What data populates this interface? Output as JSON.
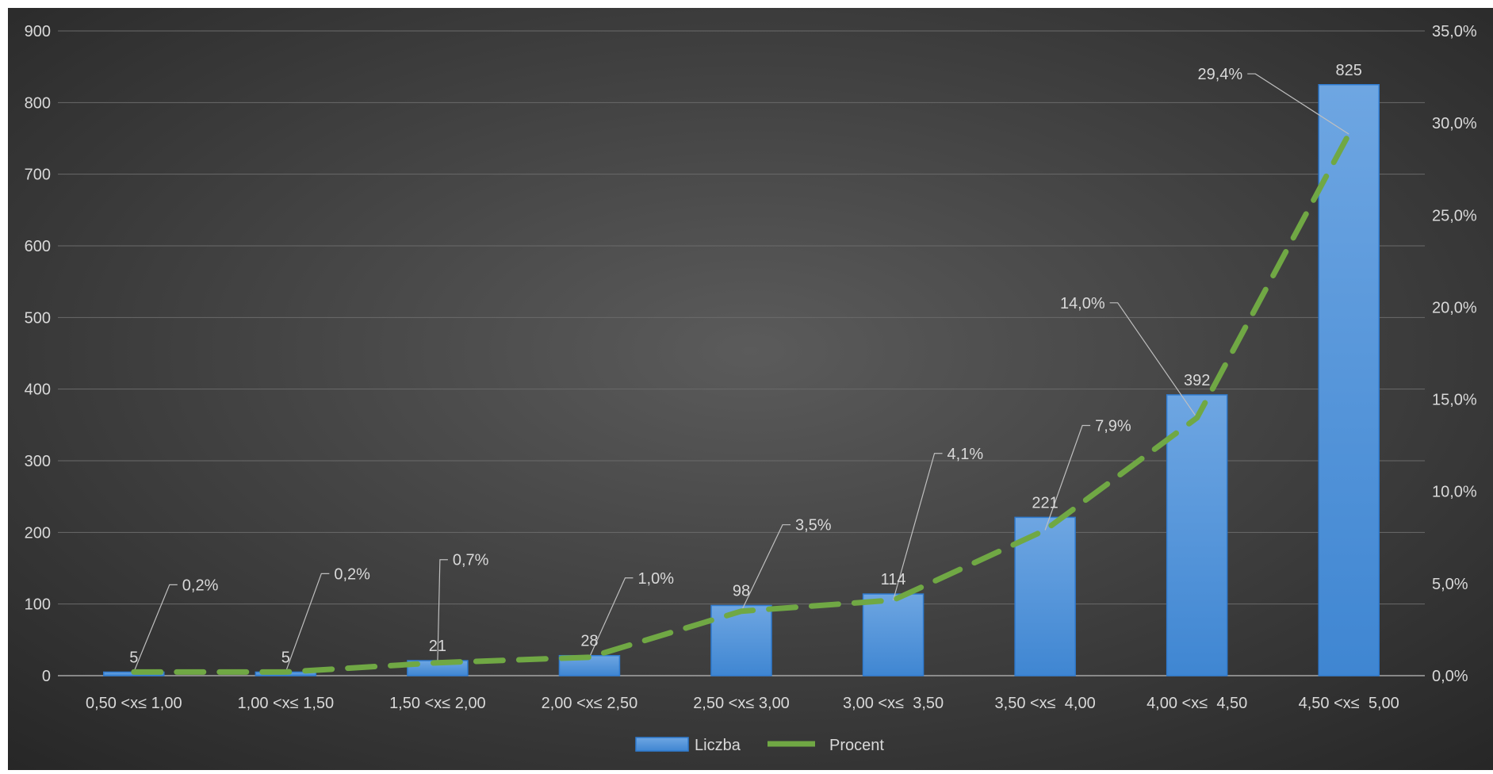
{
  "chart_data": {
    "type": "bar",
    "categories": [
      "0,50 <x≤ 1,00",
      "1,00 <x≤ 1,50",
      "1,50 <x≤ 2,00",
      "2,00 <x≤ 2,50",
      "2,50 <x≤ 3,00",
      "3,00 <x≤  3,50",
      "3,50 <x≤  4,00",
      "4,00 <x≤  4,50",
      "4,50 <x≤  5,00"
    ],
    "series": [
      {
        "name": "Liczba",
        "type": "bar",
        "axis": "left",
        "values": [
          5,
          5,
          21,
          28,
          98,
          114,
          221,
          392,
          825
        ],
        "labels": [
          "5",
          "5",
          "21",
          "28",
          "98",
          "114",
          "221",
          "392",
          "825"
        ],
        "color": "#4a90d9"
      },
      {
        "name": "Procent",
        "type": "line",
        "style": "dashed",
        "axis": "right",
        "values": [
          0.2,
          0.2,
          0.7,
          1.0,
          3.5,
          4.1,
          7.9,
          14.0,
          29.4
        ],
        "labels": [
          "0,2%",
          "0,2%",
          "0,7%",
          "1,0%",
          "3,5%",
          "4,1%",
          "7,9%",
          "14,0%",
          "29,4%"
        ],
        "color": "#70a844"
      }
    ],
    "y_left": {
      "min": 0,
      "max": 900,
      "ticks": [
        0,
        100,
        200,
        300,
        400,
        500,
        600,
        700,
        800,
        900
      ],
      "tick_labels": [
        "0",
        "100",
        "200",
        "300",
        "400",
        "500",
        "600",
        "700",
        "800",
        "900"
      ]
    },
    "y_right": {
      "min": 0,
      "max": 35,
      "ticks": [
        0,
        5,
        10,
        15,
        20,
        25,
        30,
        35
      ],
      "tick_labels": [
        "0,0%",
        "5,0%",
        "10,0%",
        "15,0%",
        "20,0%",
        "25,0%",
        "30,0%",
        "35,0%"
      ]
    },
    "grid": true,
    "legend": "bottom",
    "title": "",
    "xlabel": "",
    "ylabel": "",
    "colors": {
      "background_center": "#595959",
      "background_edge": "#262626",
      "grid": "#6a6a6a",
      "text": "#d9d9d9",
      "leader": "#bfbfbf"
    }
  }
}
